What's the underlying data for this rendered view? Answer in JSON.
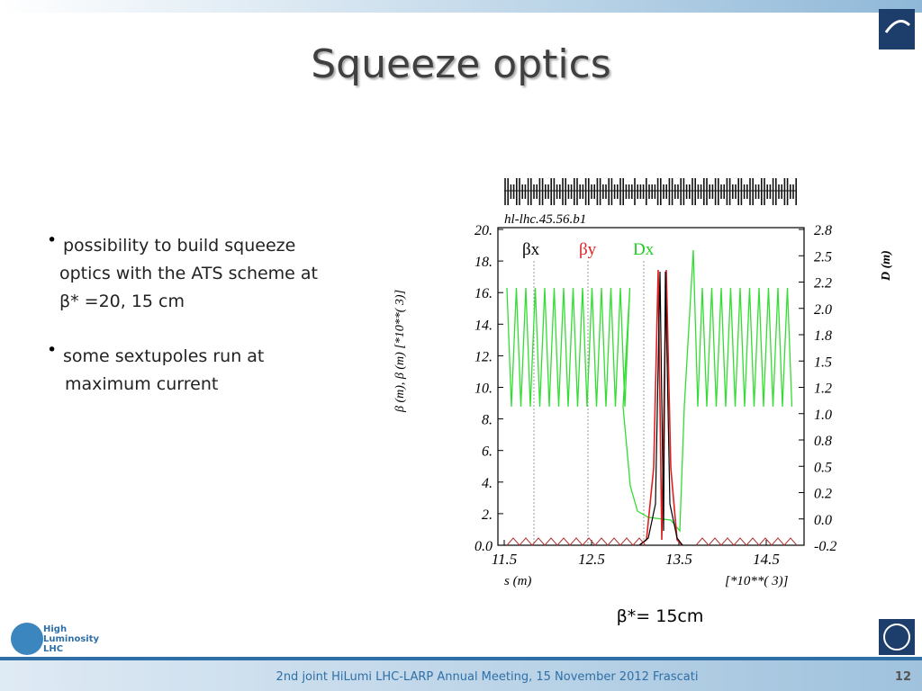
{
  "header": {
    "title": "Squeeze optics"
  },
  "bullets": [
    {
      "lines": [
        "possibility to build  squeeze",
        "optics  with the ATS scheme at",
        "β* =20, 15 cm"
      ]
    },
    {
      "lines": [
        "some sextupoles run at",
        "maximum current"
      ]
    }
  ],
  "figure": {
    "label": "hl-lhc.45.56.b1",
    "y_label": "β (m), β (m)    [*10**( 3)]",
    "y2_label": "D (m)",
    "x_label": "s (m)",
    "x_scale": "[*10**( 3)]",
    "legend": [
      "βx",
      "βy",
      "Dx"
    ],
    "yticks": [
      "20.",
      "18.",
      "16.",
      "14.",
      "12.",
      "10.",
      "8.",
      "6.",
      "4.",
      "2.",
      "0.0"
    ],
    "y2ticks": [
      "2.8",
      "2.5",
      "2.2",
      "2.0",
      "1.8",
      "1.5",
      "1.2",
      "1.0",
      "0.8",
      "0.5",
      "0.2",
      "0.0",
      "-0.2"
    ],
    "xticks": [
      "11.5",
      "12.5",
      "13.5",
      "14.5"
    ],
    "caption": "β*= 15cm"
  },
  "logo": {
    "lines": [
      "High",
      "Luminosity",
      "LHC"
    ]
  },
  "footer": {
    "text": "2nd joint HiLumi LHC-LARP Annual Meeting, 15 November 2012 Frascati",
    "page": "12"
  }
}
